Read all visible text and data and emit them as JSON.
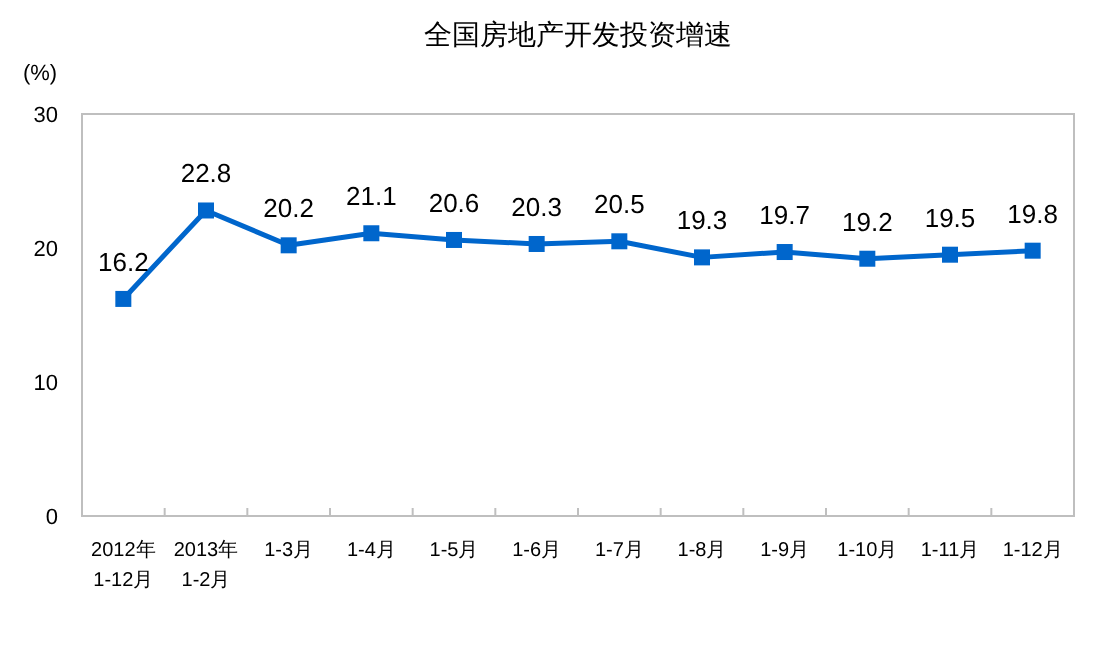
{
  "chart_data": {
    "type": "line",
    "title": "全国房地产开发投资增速",
    "ylabel": "(%)",
    "categories": [
      "2012年\n1-12月",
      "2013年\n1-2月",
      "1-3月",
      "1-4月",
      "1-5月",
      "1-6月",
      "1-7月",
      "1-8月",
      "1-9月",
      "1-10月",
      "1-11月",
      "1-12月"
    ],
    "series": [
      {
        "color": "#0066cc",
        "values": [
          16.2,
          22.8,
          20.2,
          21.1,
          20.6,
          20.3,
          20.5,
          19.3,
          19.7,
          19.2,
          19.5,
          19.8
        ]
      }
    ],
    "ylim": [
      0,
      30
    ],
    "yticks": [
      0,
      10,
      20,
      30
    ],
    "grid": false,
    "marker": "square",
    "line_style": "solid",
    "data_labels": true
  }
}
